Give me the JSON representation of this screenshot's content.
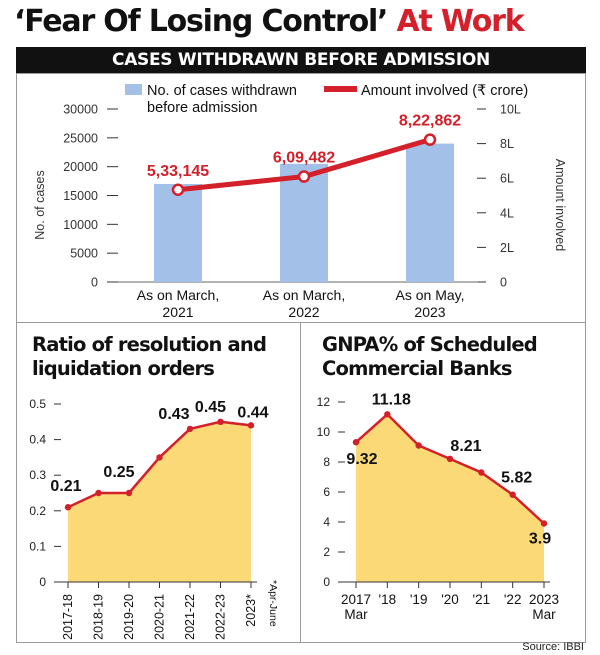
{
  "title": {
    "part1": "‘Fear Of Losing Control’ ",
    "part2": "At Work"
  },
  "banner": "CASES WITHDRAWN BEFORE ADMISSION",
  "source": "Source: IBBI",
  "colors": {
    "accent_red": "#d4202a",
    "bar_blue": "#a3c1e8",
    "area_yellow": "#fbd976",
    "text": "#111111"
  },
  "chart_data": [
    {
      "type": "bar",
      "categories": [
        [
          "As on March,",
          "2021"
        ],
        [
          "As on March,",
          "2022"
        ],
        [
          "As on May,",
          "2023"
        ]
      ],
      "series": [
        {
          "name": "No. of cases withdrawn before admission",
          "legend_lines": [
            "No. of cases withdrawn",
            "before admission"
          ],
          "values": [
            17000,
            20500,
            24000
          ],
          "axis": "left"
        },
        {
          "name": "Amount involved (₹ crore)",
          "type": "line",
          "values": [
            533145,
            609482,
            822862
          ],
          "labels": [
            "5,33,145",
            "6,09,482",
            "8,22,862"
          ],
          "axis": "right"
        }
      ],
      "ylabel": "No. of cases",
      "ylim": [
        0,
        30000
      ],
      "yticks": [
        "0",
        "5000",
        "10000",
        "15000",
        "20000",
        "25000",
        "30000"
      ],
      "y2label": "Amount involved",
      "y2lim": [
        0,
        1000000
      ],
      "y2ticks": [
        "0",
        "2L",
        "4L",
        "6L",
        "8L",
        "10L"
      ]
    },
    {
      "type": "area",
      "title": [
        "Ratio of resolution and",
        "liquidation orders"
      ],
      "categories": [
        "2017-18",
        "2018-19",
        "2019-20",
        "2020-21",
        "2021-22",
        "2022-23",
        "2023*"
      ],
      "values": [
        0.21,
        0.25,
        0.25,
        0.35,
        0.43,
        0.45,
        0.44
      ],
      "point_labels": {
        "0": "0.21",
        "2": "0.25",
        "4": "0.43",
        "5": "0.45",
        "6": "0.44"
      },
      "note": "*Apr-June",
      "ylim": [
        0,
        0.5
      ],
      "yticks": [
        "0",
        "0.1",
        "0.2",
        "0.3",
        "0.4",
        "0.5"
      ]
    },
    {
      "type": "area",
      "title": [
        "GNPA% of Scheduled",
        "Commercial Banks"
      ],
      "categories": [
        [
          "2017",
          "Mar"
        ],
        [
          "'18"
        ],
        [
          "'19"
        ],
        [
          "'20"
        ],
        [
          "'21"
        ],
        [
          "'22"
        ],
        [
          "2023",
          "Mar"
        ]
      ],
      "values": [
        9.32,
        11.18,
        9.1,
        8.21,
        7.3,
        5.82,
        3.9
      ],
      "point_labels": {
        "0": "9.32",
        "1": "11.18",
        "3": "8.21",
        "5": "5.82",
        "6": "3.9"
      },
      "ylim": [
        0,
        12
      ],
      "yticks": [
        "0",
        "2",
        "4",
        "6",
        "8",
        "10",
        "12"
      ]
    }
  ]
}
